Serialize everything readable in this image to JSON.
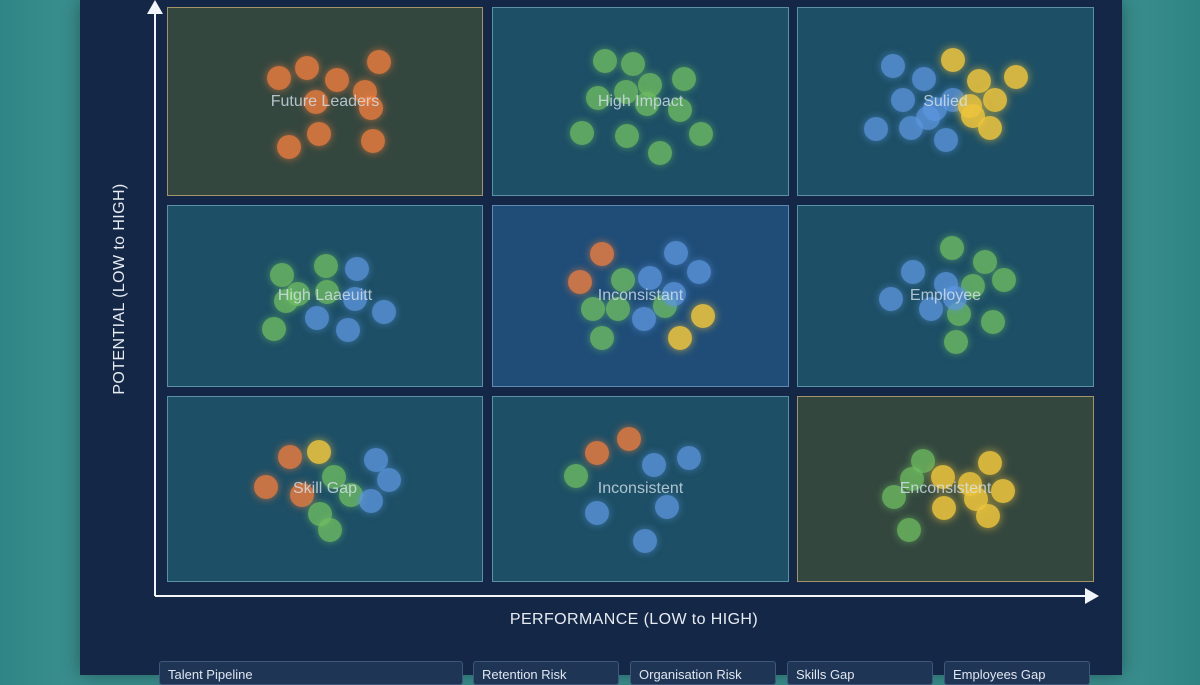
{
  "axes": {
    "y_label": "POTENTIAL (LOW to HIGH)",
    "x_label": "PERFORMANCE (LOW to HIGH)"
  },
  "grid": {
    "rows": [
      [
        {
          "label": "Future Leaders",
          "style": "warm",
          "dots": {
            "orange": 10,
            "green": 0,
            "blue": 0,
            "yellow": 0
          }
        },
        {
          "label": "High Impact",
          "style": "normal",
          "dots": {
            "orange": 0,
            "green": 12,
            "blue": 0,
            "yellow": 0
          }
        },
        {
          "label": "Sulied",
          "style": "normal",
          "dots": {
            "orange": 0,
            "green": 0,
            "blue": 9,
            "yellow": 7
          }
        }
      ],
      [
        {
          "label": "High Laaeuitt",
          "style": "normal",
          "dots": {
            "orange": 0,
            "green": 6,
            "blue": 5,
            "yellow": 0
          }
        },
        {
          "label": "Inconsistant",
          "style": "center",
          "dots": {
            "orange": 2,
            "green": 5,
            "blue": 5,
            "yellow": 2
          }
        },
        {
          "label": "Employee",
          "style": "normal",
          "dots": {
            "orange": 0,
            "green": 7,
            "blue": 5,
            "yellow": 0
          }
        }
      ],
      [
        {
          "label": "Skill Gap",
          "style": "normal",
          "dots": {
            "orange": 3,
            "green": 4,
            "blue": 3,
            "yellow": 1
          }
        },
        {
          "label": "Inconsistent",
          "style": "normal",
          "dots": {
            "orange": 2,
            "green": 1,
            "blue": 5,
            "yellow": 0
          }
        },
        {
          "label": "Enconsistent",
          "style": "warm",
          "dots": {
            "orange": 0,
            "green": 4,
            "blue": 0,
            "yellow": 7
          }
        }
      ]
    ]
  },
  "bottom_tabs": [
    {
      "label": "Talent Pipeline"
    },
    {
      "label": "Retention Risk"
    },
    {
      "label": "Organisation Risk"
    },
    {
      "label": "Skills Gap"
    },
    {
      "label": "Employees Gap"
    }
  ],
  "colors": {
    "orange": "#ec7c3e",
    "green": "#70be62",
    "blue": "#5c96de",
    "yellow": "#ecc43e",
    "panel": "#142746"
  }
}
